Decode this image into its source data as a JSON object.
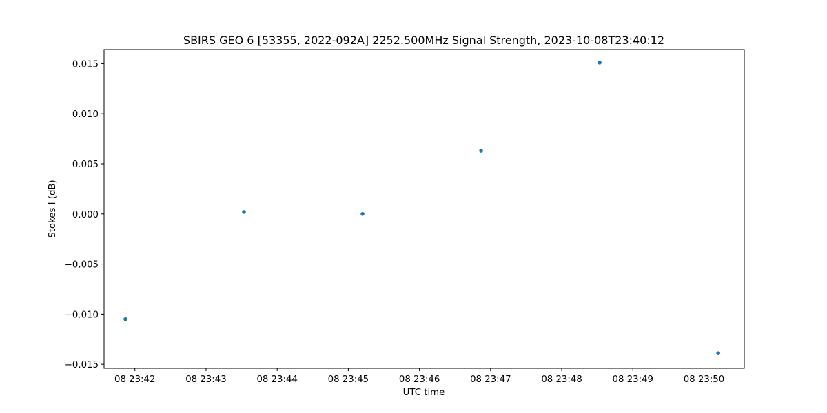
{
  "chart_data": {
    "type": "scatter",
    "title": "SBIRS GEO 6 [53355, 2022-092A] 2252.500MHz Signal Strength, 2023-10-08T23:40:12",
    "xlabel": "UTC time",
    "ylabel": "Stokes I (dB)",
    "x_type": "time",
    "xlim": [
      "2023-10-08T23:41:34",
      "2023-10-08T23:50:34"
    ],
    "ylim": [
      -0.0154,
      0.0164
    ],
    "grid": false,
    "legend": "none",
    "series": [
      {
        "color": "#1f77b4",
        "points": [
          {
            "x": "2023-10-08T23:41:52",
            "y": -0.0105
          },
          {
            "x": "2023-10-08T23:43:32",
            "y": 0.0002
          },
          {
            "x": "2023-10-08T23:45:12",
            "y": 0.0
          },
          {
            "x": "2023-10-08T23:46:52",
            "y": 0.0063
          },
          {
            "x": "2023-10-08T23:48:32",
            "y": 0.0151
          },
          {
            "x": "2023-10-08T23:50:12",
            "y": -0.0139
          }
        ]
      }
    ],
    "x_ticks": [
      {
        "value": "2023-10-08T23:42:00",
        "label": "08 23:42"
      },
      {
        "value": "2023-10-08T23:43:00",
        "label": "08 23:43"
      },
      {
        "value": "2023-10-08T23:44:00",
        "label": "08 23:44"
      },
      {
        "value": "2023-10-08T23:45:00",
        "label": "08 23:45"
      },
      {
        "value": "2023-10-08T23:46:00",
        "label": "08 23:46"
      },
      {
        "value": "2023-10-08T23:47:00",
        "label": "08 23:47"
      },
      {
        "value": "2023-10-08T23:48:00",
        "label": "08 23:48"
      },
      {
        "value": "2023-10-08T23:49:00",
        "label": "08 23:49"
      },
      {
        "value": "2023-10-08T23:50:00",
        "label": "08 23:50"
      }
    ],
    "y_ticks": [
      {
        "value": 0.015,
        "label": "0.015"
      },
      {
        "value": 0.01,
        "label": "0.010"
      },
      {
        "value": 0.005,
        "label": "0.005"
      },
      {
        "value": 0.0,
        "label": "0.000"
      },
      {
        "value": -0.005,
        "label": "−0.005"
      },
      {
        "value": -0.01,
        "label": "−0.010"
      },
      {
        "value": -0.015,
        "label": "−0.015"
      }
    ]
  }
}
